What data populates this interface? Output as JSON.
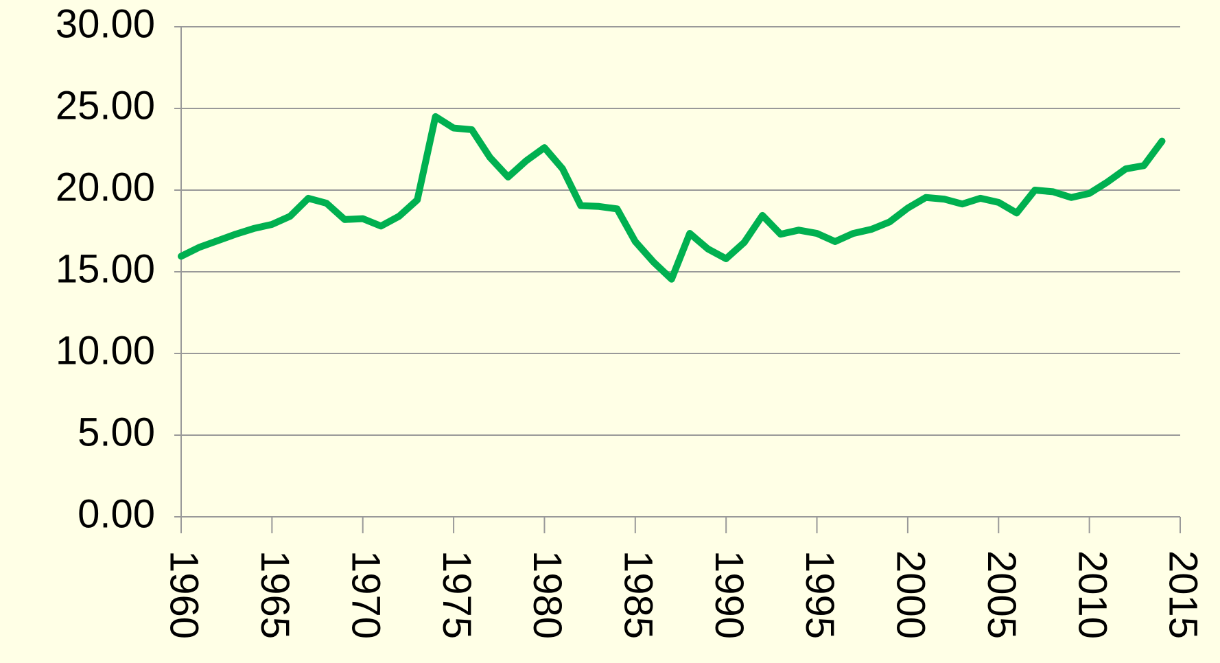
{
  "chart_data": {
    "type": "line",
    "x": [
      1960,
      1961,
      1962,
      1963,
      1964,
      1965,
      1966,
      1967,
      1968,
      1969,
      1970,
      1971,
      1972,
      1973,
      1974,
      1975,
      1976,
      1977,
      1978,
      1979,
      1980,
      1981,
      1982,
      1983,
      1984,
      1985,
      1986,
      1987,
      1988,
      1989,
      1990,
      1991,
      1992,
      1993,
      1994,
      1995,
      1996,
      1997,
      1998,
      1999,
      2000,
      2001,
      2002,
      2003,
      2004,
      2005,
      2006,
      2007,
      2008,
      2009,
      2010,
      2011,
      2012,
      2013,
      2014
    ],
    "series": [
      {
        "color": "#00b050",
        "values": [
          15.95,
          16.5,
          16.9,
          17.3,
          17.65,
          17.9,
          18.4,
          19.5,
          19.2,
          18.2,
          18.25,
          17.8,
          18.4,
          19.4,
          24.5,
          23.8,
          23.7,
          22.0,
          20.8,
          21.8,
          22.6,
          21.3,
          19.05,
          19.0,
          18.85,
          16.85,
          15.6,
          14.55,
          17.35,
          16.4,
          15.8,
          16.8,
          18.45,
          17.3,
          17.55,
          17.35,
          16.85,
          17.35,
          17.6,
          18.05,
          18.9,
          19.55,
          19.45,
          19.15,
          19.5,
          19.25,
          18.6,
          20.0,
          19.9,
          19.55,
          19.8,
          20.5,
          21.3,
          21.5,
          23.0
        ]
      }
    ],
    "xlim": [
      1960,
      2015
    ],
    "xticks": [
      1960,
      1965,
      1970,
      1975,
      1980,
      1985,
      1990,
      1995,
      2000,
      2005,
      2010,
      2015
    ],
    "ylim": [
      0,
      30
    ],
    "yticks": [
      {
        "value": 0,
        "label": "0.00"
      },
      {
        "value": 5,
        "label": "5.00"
      },
      {
        "value": 10,
        "label": "10.00"
      },
      {
        "value": 15,
        "label": "15.00"
      },
      {
        "value": 20,
        "label": "20.00"
      },
      {
        "value": 25,
        "label": "25.00"
      },
      {
        "value": 30,
        "label": "30.00"
      }
    ],
    "grid": true
  }
}
